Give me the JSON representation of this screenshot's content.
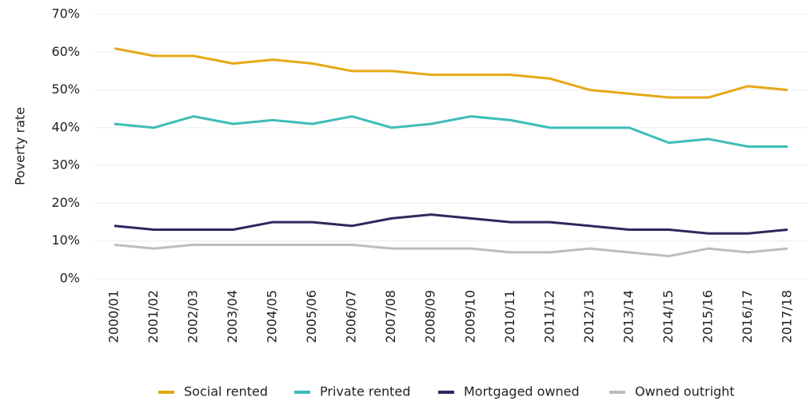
{
  "chart_data": {
    "type": "line",
    "y_label": "Poverty rate",
    "categories": [
      "2000/01",
      "2001/02",
      "2002/03",
      "2003/04",
      "2004/05",
      "2005/06",
      "2006/07",
      "2007/08",
      "2008/09",
      "2009/10",
      "2010/11",
      "2011/12",
      "2012/13",
      "2013/14",
      "2014/15",
      "2015/16",
      "2016/17",
      "2017/18"
    ],
    "series": [
      {
        "name": "Social rented",
        "color": "#e6a817",
        "values": [
          61,
          59,
          59,
          57,
          58,
          57,
          55,
          55,
          54,
          54,
          54,
          53,
          50,
          49,
          48,
          48,
          51,
          50
        ]
      },
      {
        "name": "Private rented",
        "color": "#3dbdb6",
        "values": [
          41,
          40,
          43,
          41,
          42,
          41,
          43,
          40,
          41,
          43,
          42,
          40,
          40,
          40,
          36,
          37,
          35,
          35
        ]
      },
      {
        "name": "Mortgaged owned",
        "color": "#2b2a5e",
        "values": [
          14,
          13,
          13,
          13,
          15,
          15,
          14,
          16,
          17,
          16,
          15,
          15,
          14,
          13,
          13,
          12,
          12,
          13
        ]
      },
      {
        "name": "Owned outright",
        "color": "#bdbdbd",
        "values": [
          9,
          8,
          9,
          9,
          9,
          9,
          9,
          8,
          8,
          8,
          7,
          7,
          8,
          7,
          6,
          8,
          7,
          8
        ]
      }
    ],
    "ylim": [
      0,
      70
    ],
    "yticks": [
      {
        "value": 0,
        "label": "0%"
      },
      {
        "value": 10,
        "label": "10%"
      },
      {
        "value": 20,
        "label": "20%"
      },
      {
        "value": 30,
        "label": "30%"
      },
      {
        "value": 40,
        "label": "40%"
      },
      {
        "value": 50,
        "label": "50%"
      },
      {
        "value": 60,
        "label": "60%"
      },
      {
        "value": 70,
        "label": "70%"
      }
    ],
    "grid": true,
    "legend": "bottom"
  }
}
